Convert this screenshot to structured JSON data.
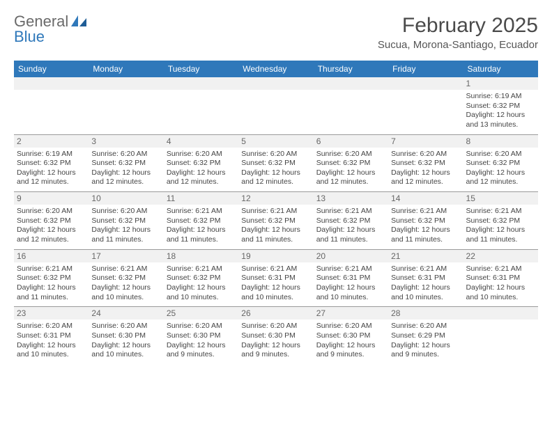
{
  "brand": {
    "part1": "General",
    "part2": "Blue"
  },
  "title": "February 2025",
  "location": "Sucua, Morona-Santiago, Ecuador",
  "colors": {
    "header_bg": "#2f78ba",
    "header_text": "#ffffff",
    "daynum_bg": "#f1f1f1",
    "rule": "#9a9a9a",
    "text": "#444444"
  },
  "daysOfWeek": [
    "Sunday",
    "Monday",
    "Tuesday",
    "Wednesday",
    "Thursday",
    "Friday",
    "Saturday"
  ],
  "weeks": [
    [
      null,
      null,
      null,
      null,
      null,
      null,
      {
        "n": "1",
        "sr": "6:19 AM",
        "ss": "6:32 PM",
        "d1": "Daylight: 12 hours",
        "d2": "and 13 minutes."
      }
    ],
    [
      {
        "n": "2",
        "sr": "6:19 AM",
        "ss": "6:32 PM",
        "d1": "Daylight: 12 hours",
        "d2": "and 12 minutes."
      },
      {
        "n": "3",
        "sr": "6:20 AM",
        "ss": "6:32 PM",
        "d1": "Daylight: 12 hours",
        "d2": "and 12 minutes."
      },
      {
        "n": "4",
        "sr": "6:20 AM",
        "ss": "6:32 PM",
        "d1": "Daylight: 12 hours",
        "d2": "and 12 minutes."
      },
      {
        "n": "5",
        "sr": "6:20 AM",
        "ss": "6:32 PM",
        "d1": "Daylight: 12 hours",
        "d2": "and 12 minutes."
      },
      {
        "n": "6",
        "sr": "6:20 AM",
        "ss": "6:32 PM",
        "d1": "Daylight: 12 hours",
        "d2": "and 12 minutes."
      },
      {
        "n": "7",
        "sr": "6:20 AM",
        "ss": "6:32 PM",
        "d1": "Daylight: 12 hours",
        "d2": "and 12 minutes."
      },
      {
        "n": "8",
        "sr": "6:20 AM",
        "ss": "6:32 PM",
        "d1": "Daylight: 12 hours",
        "d2": "and 12 minutes."
      }
    ],
    [
      {
        "n": "9",
        "sr": "6:20 AM",
        "ss": "6:32 PM",
        "d1": "Daylight: 12 hours",
        "d2": "and 12 minutes."
      },
      {
        "n": "10",
        "sr": "6:20 AM",
        "ss": "6:32 PM",
        "d1": "Daylight: 12 hours",
        "d2": "and 11 minutes."
      },
      {
        "n": "11",
        "sr": "6:21 AM",
        "ss": "6:32 PM",
        "d1": "Daylight: 12 hours",
        "d2": "and 11 minutes."
      },
      {
        "n": "12",
        "sr": "6:21 AM",
        "ss": "6:32 PM",
        "d1": "Daylight: 12 hours",
        "d2": "and 11 minutes."
      },
      {
        "n": "13",
        "sr": "6:21 AM",
        "ss": "6:32 PM",
        "d1": "Daylight: 12 hours",
        "d2": "and 11 minutes."
      },
      {
        "n": "14",
        "sr": "6:21 AM",
        "ss": "6:32 PM",
        "d1": "Daylight: 12 hours",
        "d2": "and 11 minutes."
      },
      {
        "n": "15",
        "sr": "6:21 AM",
        "ss": "6:32 PM",
        "d1": "Daylight: 12 hours",
        "d2": "and 11 minutes."
      }
    ],
    [
      {
        "n": "16",
        "sr": "6:21 AM",
        "ss": "6:32 PM",
        "d1": "Daylight: 12 hours",
        "d2": "and 11 minutes."
      },
      {
        "n": "17",
        "sr": "6:21 AM",
        "ss": "6:32 PM",
        "d1": "Daylight: 12 hours",
        "d2": "and 10 minutes."
      },
      {
        "n": "18",
        "sr": "6:21 AM",
        "ss": "6:32 PM",
        "d1": "Daylight: 12 hours",
        "d2": "and 10 minutes."
      },
      {
        "n": "19",
        "sr": "6:21 AM",
        "ss": "6:31 PM",
        "d1": "Daylight: 12 hours",
        "d2": "and 10 minutes."
      },
      {
        "n": "20",
        "sr": "6:21 AM",
        "ss": "6:31 PM",
        "d1": "Daylight: 12 hours",
        "d2": "and 10 minutes."
      },
      {
        "n": "21",
        "sr": "6:21 AM",
        "ss": "6:31 PM",
        "d1": "Daylight: 12 hours",
        "d2": "and 10 minutes."
      },
      {
        "n": "22",
        "sr": "6:21 AM",
        "ss": "6:31 PM",
        "d1": "Daylight: 12 hours",
        "d2": "and 10 minutes."
      }
    ],
    [
      {
        "n": "23",
        "sr": "6:20 AM",
        "ss": "6:31 PM",
        "d1": "Daylight: 12 hours",
        "d2": "and 10 minutes."
      },
      {
        "n": "24",
        "sr": "6:20 AM",
        "ss": "6:30 PM",
        "d1": "Daylight: 12 hours",
        "d2": "and 10 minutes."
      },
      {
        "n": "25",
        "sr": "6:20 AM",
        "ss": "6:30 PM",
        "d1": "Daylight: 12 hours",
        "d2": "and 9 minutes."
      },
      {
        "n": "26",
        "sr": "6:20 AM",
        "ss": "6:30 PM",
        "d1": "Daylight: 12 hours",
        "d2": "and 9 minutes."
      },
      {
        "n": "27",
        "sr": "6:20 AM",
        "ss": "6:30 PM",
        "d1": "Daylight: 12 hours",
        "d2": "and 9 minutes."
      },
      {
        "n": "28",
        "sr": "6:20 AM",
        "ss": "6:29 PM",
        "d1": "Daylight: 12 hours",
        "d2": "and 9 minutes."
      },
      null
    ]
  ],
  "labels": {
    "sunrise": "Sunrise: ",
    "sunset": "Sunset: "
  }
}
